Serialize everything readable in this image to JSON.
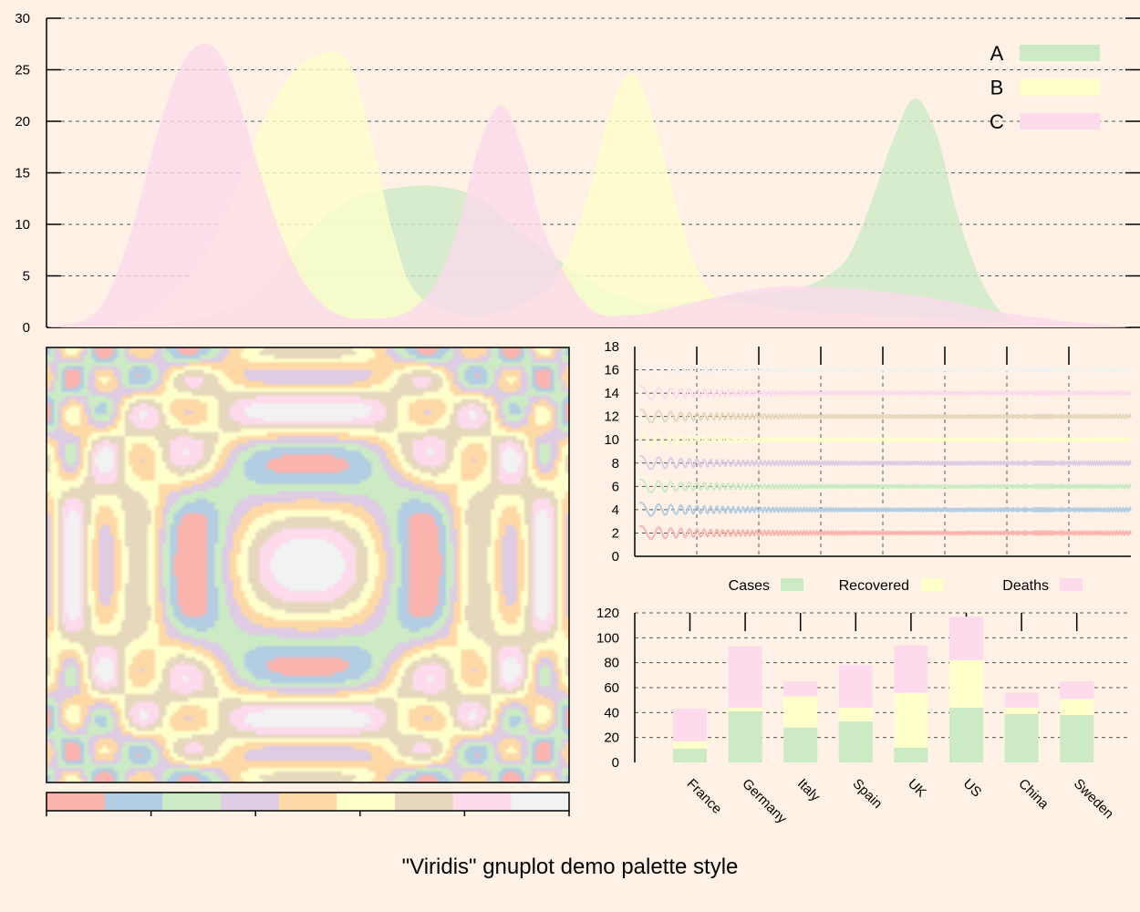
{
  "title": "\"Viridis\" gnuplot demo palette style",
  "colors": {
    "background": "#fff1e6",
    "palette": [
      "#fbb4ae",
      "#b3cde3",
      "#ccebc5",
      "#decbe4",
      "#fed9a6",
      "#ffffcc",
      "#e5d8bd",
      "#fddaec",
      "#f2f2f2"
    ]
  },
  "chart_data": [
    {
      "type": "area",
      "name": "top",
      "xlim": [
        0,
        100
      ],
      "ylim": [
        0,
        30
      ],
      "yticks": [
        "0",
        "5",
        "10",
        "15",
        "20",
        "25",
        "30"
      ],
      "grid": true,
      "legend_position": "top-right",
      "series": [
        {
          "name": "A",
          "color": "#ccebc5",
          "x": [
            0,
            4,
            8,
            12,
            16,
            20,
            24,
            28,
            32,
            36,
            40,
            44,
            48,
            52,
            56,
            60,
            64,
            68,
            70,
            72,
            74,
            76,
            78,
            80,
            82,
            84,
            86,
            88,
            90,
            92,
            96,
            100
          ],
          "y": [
            0,
            0.1,
            0.2,
            0.5,
            1.5,
            4,
            9,
            12.5,
            13.5,
            13.7,
            12.5,
            9,
            6,
            3.5,
            2.2,
            2.6,
            3.2,
            3.6,
            4,
            5,
            7,
            12,
            18,
            22.2,
            19,
            11,
            5,
            1.5,
            0.5,
            0.1,
            0,
            0
          ]
        },
        {
          "name": "B",
          "color": "#ffffcc",
          "x": [
            0,
            6,
            10,
            14,
            17,
            20,
            23,
            26,
            28,
            30,
            32,
            34,
            38,
            42,
            46,
            48,
            50,
            52,
            54,
            56,
            58,
            60,
            62,
            64,
            70,
            80,
            90,
            100
          ],
          "y": [
            0,
            0.3,
            1.5,
            6,
            12,
            20,
            25,
            26.7,
            25.5,
            18,
            9,
            3.5,
            1.2,
            1.5,
            3.5,
            7,
            13,
            21,
            24.7,
            20,
            12,
            5.5,
            2.8,
            2.5,
            1.5,
            1,
            0.3,
            0
          ]
        },
        {
          "name": "C",
          "color": "#fddaec",
          "x": [
            0,
            4,
            6,
            8,
            10,
            12,
            14,
            16,
            18,
            20,
            22,
            24,
            26,
            28,
            30,
            32,
            34,
            36,
            38,
            40,
            42,
            44,
            46,
            50,
            54,
            58,
            62,
            66,
            70,
            76,
            82,
            88,
            94,
            100
          ],
          "y": [
            0,
            1,
            4,
            10,
            18,
            24.5,
            27.4,
            26.5,
            21,
            14,
            8,
            4,
            1.8,
            0.9,
            0.9,
            1,
            2,
            4.5,
            10,
            18,
            21.5,
            17,
            9,
            2,
            1.2,
            2,
            3,
            3.8,
            4,
            3.6,
            2.8,
            1.5,
            0.6,
            0
          ]
        }
      ]
    },
    {
      "type": "heatmap",
      "name": "pattern",
      "colorbox": true,
      "levels": 9
    },
    {
      "type": "line",
      "name": "waves",
      "xlim": [
        0,
        8
      ],
      "ylim": [
        0,
        18
      ],
      "yticks": [
        "0",
        "2",
        "4",
        "6",
        "8",
        "10",
        "12",
        "14",
        "16",
        "18"
      ],
      "grid": true,
      "series": [
        {
          "offset": 2,
          "color": "#fbb4ae"
        },
        {
          "offset": 4,
          "color": "#b3cde3"
        },
        {
          "offset": 6,
          "color": "#ccebc5"
        },
        {
          "offset": 8,
          "color": "#decbe4"
        },
        {
          "offset": 10,
          "color": "#ffffcc"
        },
        {
          "offset": 12,
          "color": "#e5d8bd"
        },
        {
          "offset": 14,
          "color": "#fddaec"
        },
        {
          "offset": 16,
          "color": "#f2f2f2"
        }
      ]
    },
    {
      "type": "bar",
      "name": "stacked",
      "stacked": true,
      "ylim": [
        0,
        120
      ],
      "yticks": [
        "0",
        "20",
        "40",
        "60",
        "80",
        "100",
        "120"
      ],
      "grid": true,
      "legend_position": "top",
      "categories": [
        "France",
        "Germany",
        "Italy",
        "Spain",
        "UK",
        "US",
        "China",
        "Sweden"
      ],
      "series": [
        {
          "name": "Cases",
          "color": "#ccebc5",
          "values": [
            11,
            41,
            28,
            33,
            12,
            44,
            39,
            38
          ]
        },
        {
          "name": "Recovered",
          "color": "#ffffcc",
          "values": [
            6,
            3,
            25,
            11,
            44,
            38,
            5,
            13
          ]
        },
        {
          "name": "Deaths",
          "color": "#fddaec",
          "values": [
            26,
            49,
            12,
            34,
            38,
            35,
            12,
            14
          ]
        }
      ]
    }
  ]
}
